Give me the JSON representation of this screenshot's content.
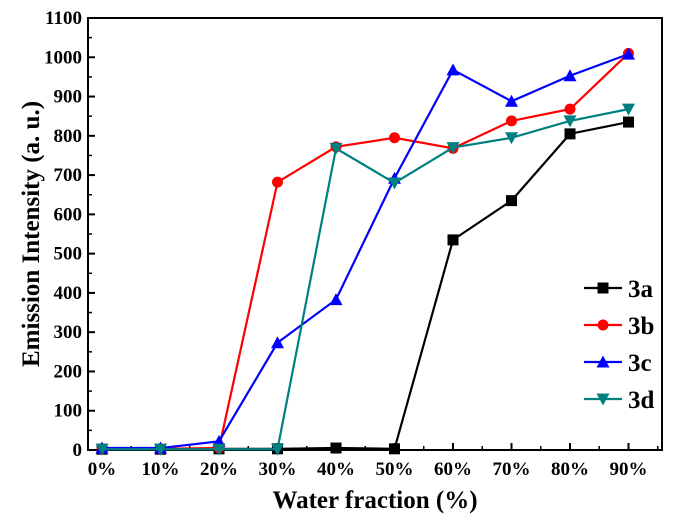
{
  "chart_data": {
    "type": "line",
    "xlabel": "Water fraction (%)",
    "ylabel": "Emission Intensity (a. u.)",
    "categories": [
      "0%",
      "10%",
      "20%",
      "30%",
      "40%",
      "50%",
      "60%",
      "70%",
      "80%",
      "90%"
    ],
    "ylim": [
      0,
      1100
    ],
    "yticks": [
      0,
      100,
      200,
      300,
      400,
      500,
      600,
      700,
      800,
      900,
      1000,
      1100
    ],
    "grid": false,
    "legend_position": "right",
    "series": [
      {
        "name": "3a",
        "color": "#000000",
        "marker": "square",
        "values": [
          2,
          2,
          3,
          3,
          5,
          3,
          535,
          635,
          805,
          835
        ]
      },
      {
        "name": "3b",
        "color": "#ff0000",
        "marker": "circle",
        "values": [
          3,
          3,
          5,
          682,
          772,
          795,
          768,
          838,
          868,
          1010
        ]
      },
      {
        "name": "3c",
        "color": "#0000ff",
        "marker": "triangle-up",
        "values": [
          5,
          5,
          22,
          273,
          383,
          692,
          968,
          888,
          953,
          1008
        ]
      },
      {
        "name": "3d",
        "color": "#008080",
        "marker": "triangle-down",
        "values": [
          2,
          2,
          2,
          2,
          768,
          680,
          770,
          795,
          838,
          868
        ]
      }
    ]
  }
}
